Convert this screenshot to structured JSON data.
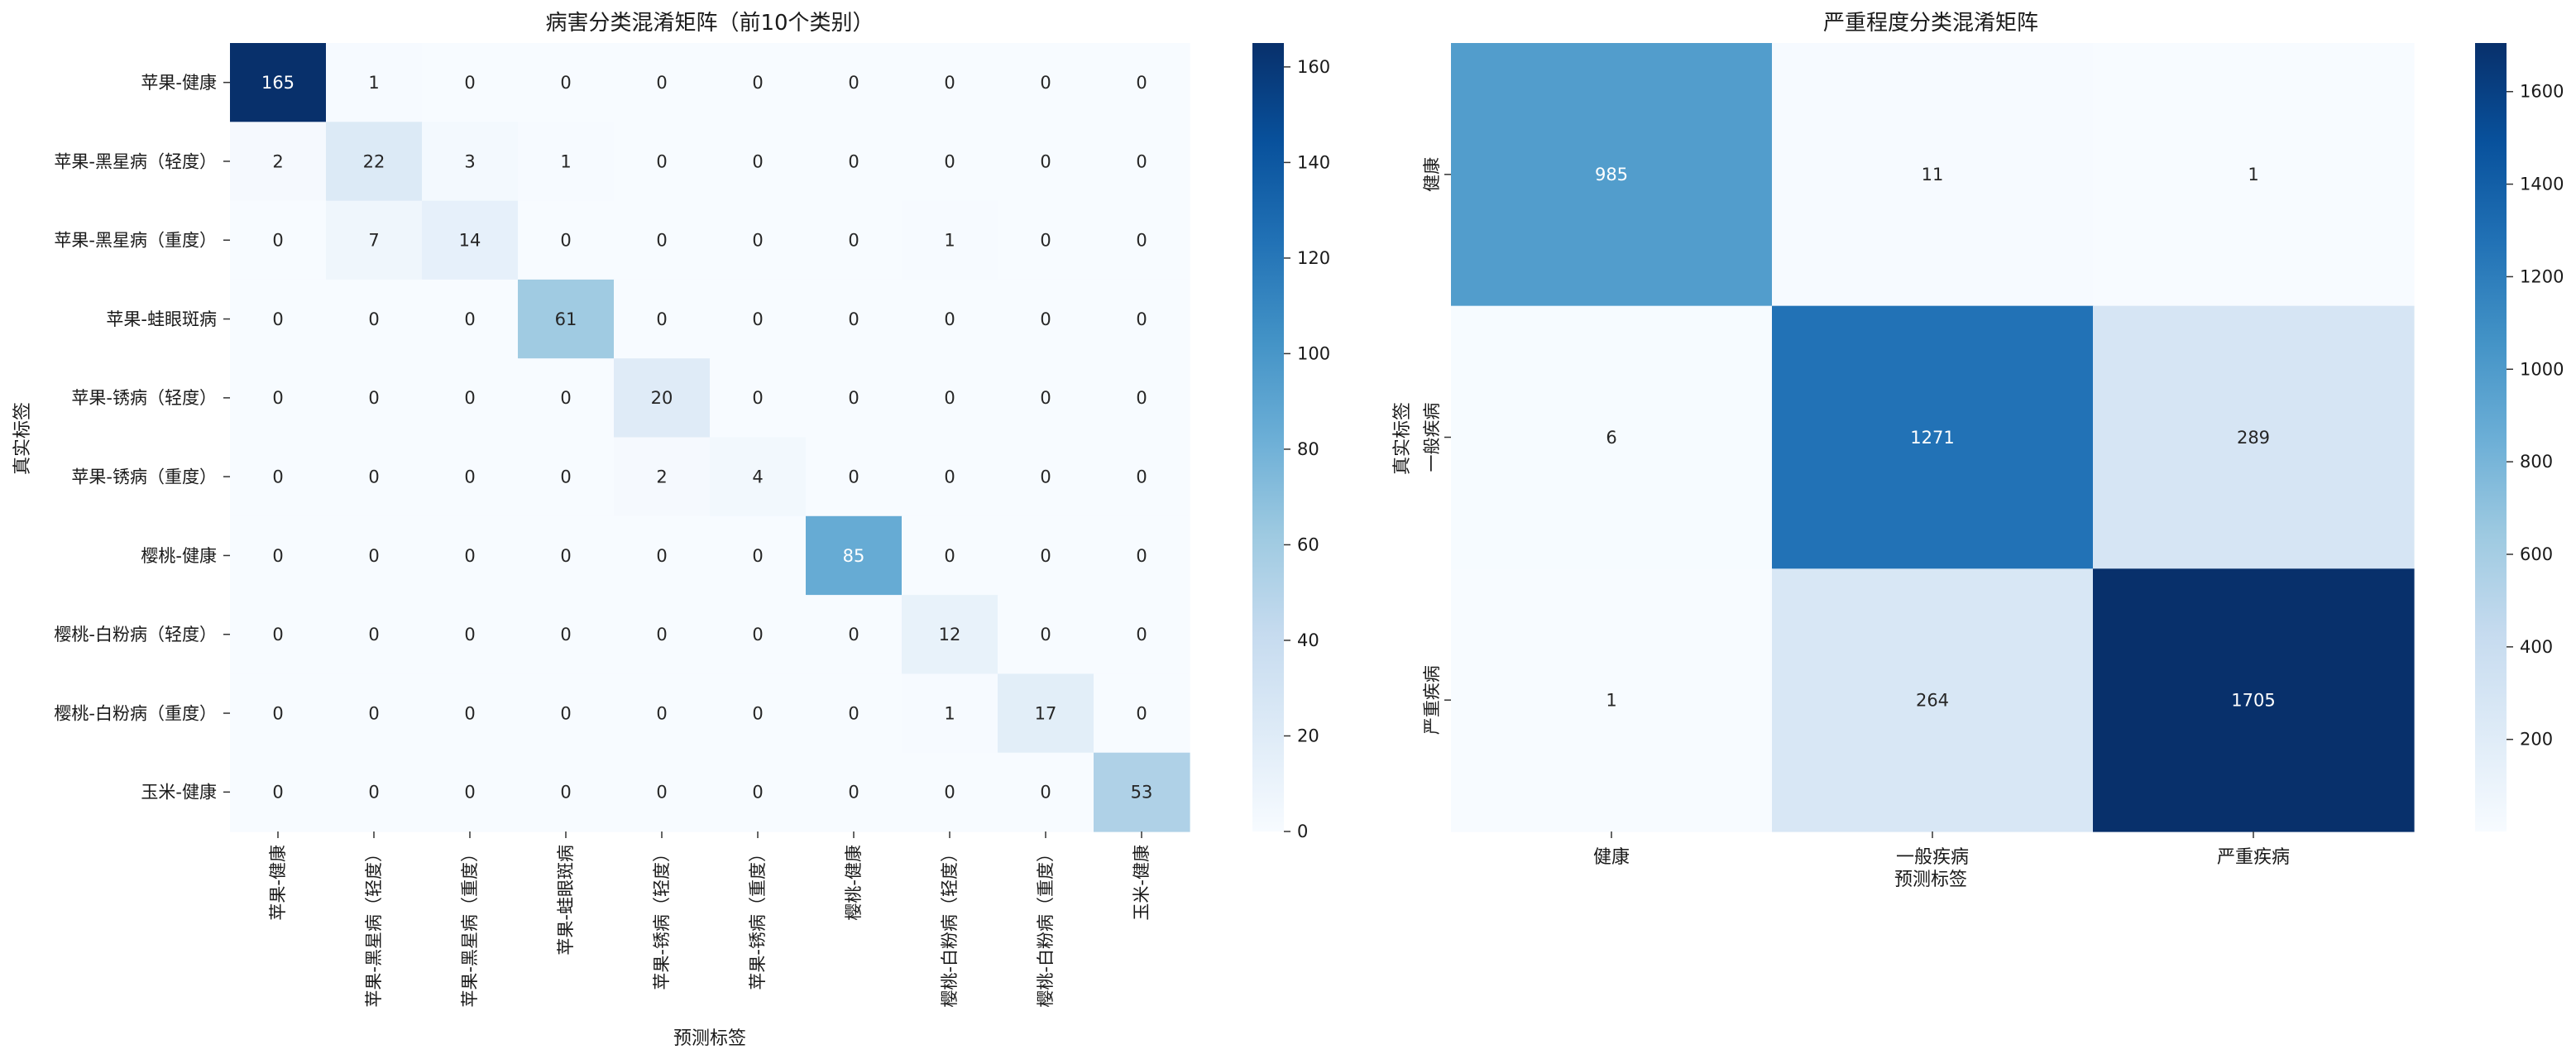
{
  "chart_data": [
    {
      "type": "heatmap",
      "title": "病害分类混淆矩阵（前10个类别）",
      "xlabel": "预测标签",
      "ylabel": "真实标签",
      "x_categories": [
        "苹果-健康",
        "苹果-黑星病（轻度）",
        "苹果-黑星病（重度）",
        "苹果-蛙眼斑病",
        "苹果-锈病（轻度）",
        "苹果-锈病（重度）",
        "樱桃-健康",
        "樱桃-白粉病（轻度）",
        "樱桃-白粉病（重度）",
        "玉米-健康"
      ],
      "y_categories": [
        "苹果-健康",
        "苹果-黑星病（轻度）",
        "苹果-黑星病（重度）",
        "苹果-蛙眼斑病",
        "苹果-锈病（轻度）",
        "苹果-锈病（重度）",
        "樱桃-健康",
        "樱桃-白粉病（轻度）",
        "樱桃-白粉病（重度）",
        "玉米-健康"
      ],
      "matrix": [
        [
          165,
          1,
          0,
          0,
          0,
          0,
          0,
          0,
          0,
          0
        ],
        [
          2,
          22,
          3,
          1,
          0,
          0,
          0,
          0,
          0,
          0
        ],
        [
          0,
          7,
          14,
          0,
          0,
          0,
          0,
          1,
          0,
          0
        ],
        [
          0,
          0,
          0,
          61,
          0,
          0,
          0,
          0,
          0,
          0
        ],
        [
          0,
          0,
          0,
          0,
          20,
          0,
          0,
          0,
          0,
          0
        ],
        [
          0,
          0,
          0,
          0,
          2,
          4,
          0,
          0,
          0,
          0
        ],
        [
          0,
          0,
          0,
          0,
          0,
          0,
          85,
          0,
          0,
          0
        ],
        [
          0,
          0,
          0,
          0,
          0,
          0,
          0,
          12,
          0,
          0
        ],
        [
          0,
          0,
          0,
          0,
          0,
          0,
          0,
          1,
          17,
          0
        ],
        [
          0,
          0,
          0,
          0,
          0,
          0,
          0,
          0,
          0,
          53
        ]
      ],
      "colormap": "Blues",
      "colorbar": {
        "min": 0,
        "max": 165,
        "ticks": [
          0,
          20,
          40,
          60,
          80,
          100,
          120,
          140,
          160
        ]
      }
    },
    {
      "type": "heatmap",
      "title": "严重程度分类混淆矩阵",
      "xlabel": "预测标签",
      "ylabel": "真实标签",
      "x_categories": [
        "健康",
        "一般疾病",
        "严重疾病"
      ],
      "y_categories": [
        "健康",
        "一般疾病",
        "严重疾病"
      ],
      "matrix": [
        [
          985,
          11,
          1
        ],
        [
          6,
          1271,
          289
        ],
        [
          1,
          264,
          1705
        ]
      ],
      "colormap": "Blues",
      "colorbar": {
        "min": 1,
        "max": 1705,
        "ticks": [
          200,
          400,
          600,
          800,
          1000,
          1200,
          1400,
          1600
        ]
      }
    }
  ]
}
